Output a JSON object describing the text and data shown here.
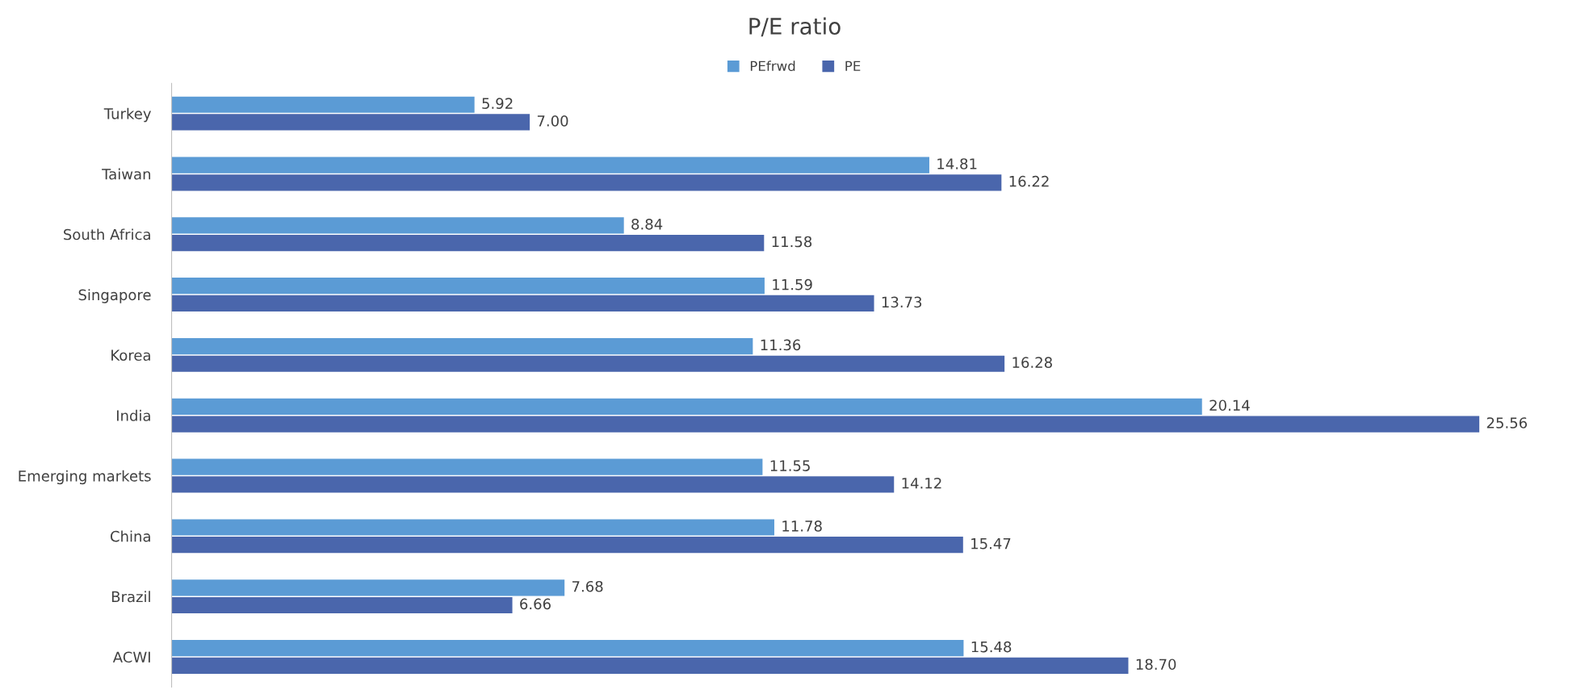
{
  "chart_data": {
    "type": "bar",
    "orientation": "horizontal",
    "title": "P/E ratio",
    "categories": [
      "Turkey",
      "Taiwan",
      "South Africa",
      "Singapore",
      "Korea",
      "India",
      "Emerging markets",
      "China",
      "Brazil",
      "ACWI"
    ],
    "series": [
      {
        "name": "PEfrwd",
        "color": "#5b9bd5",
        "values": [
          5.92,
          14.81,
          8.84,
          11.59,
          11.36,
          20.14,
          11.55,
          11.78,
          7.68,
          15.48
        ],
        "value_labels": [
          "5.92",
          "14.81",
          "8.84",
          "11.59",
          "11.36",
          "20.14",
          "11.55",
          "11.78",
          "7.68",
          "15.48"
        ]
      },
      {
        "name": "PE",
        "color": "#4a66ac",
        "values": [
          7.0,
          16.22,
          11.58,
          13.73,
          16.28,
          25.56,
          14.12,
          15.47,
          6.66,
          18.7
        ],
        "value_labels": [
          "7.00",
          "16.22",
          "11.58",
          "13.73",
          "16.28",
          "25.56",
          "14.12",
          "15.47",
          "6.66",
          "18.70"
        ]
      }
    ],
    "legend": "top",
    "tick_labels": "y"
  }
}
